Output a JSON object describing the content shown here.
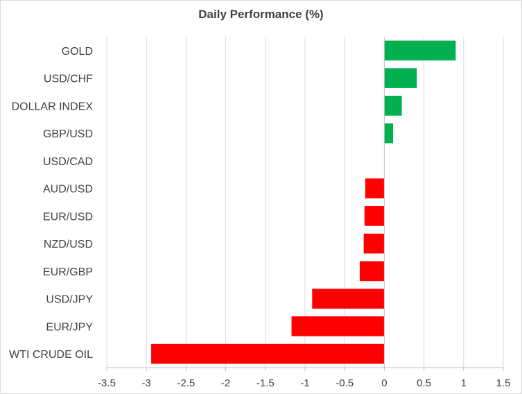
{
  "chart_data": {
    "type": "bar",
    "orientation": "horizontal",
    "title": "Daily Performance  (%)",
    "xlabel": "",
    "ylabel": "",
    "categories": [
      "GOLD",
      "USD/CHF",
      "DOLLAR INDEX",
      "GBP/USD",
      "USD/CAD",
      "AUD/USD",
      "EUR/USD",
      "NZD/USD",
      "EUR/GBP",
      "USD/JPY",
      "EUR/JPY",
      "WTI CRUDE OIL"
    ],
    "values": [
      0.9,
      0.41,
      0.22,
      0.11,
      0.0,
      -0.24,
      -0.25,
      -0.26,
      -0.31,
      -0.91,
      -1.17,
      -2.94
    ],
    "xlim": [
      -3.5,
      1.5
    ],
    "x_ticks": [
      -3.5,
      -3,
      -2.5,
      -2,
      -1.5,
      -1,
      -0.5,
      0,
      0.5,
      1,
      1.5
    ],
    "x_tick_labels": [
      "-3.5",
      "-3",
      "-2.5",
      "-2",
      "-1.5",
      "-1",
      "-0.5",
      "0",
      "0.5",
      "1",
      "1.5"
    ],
    "grid": "vertical",
    "legend": "none",
    "colors": {
      "positive": "#00b050",
      "negative": "#ff0000",
      "grid": "#d9d9d9",
      "axis": "#bfbfbf",
      "text": "#404040"
    }
  }
}
